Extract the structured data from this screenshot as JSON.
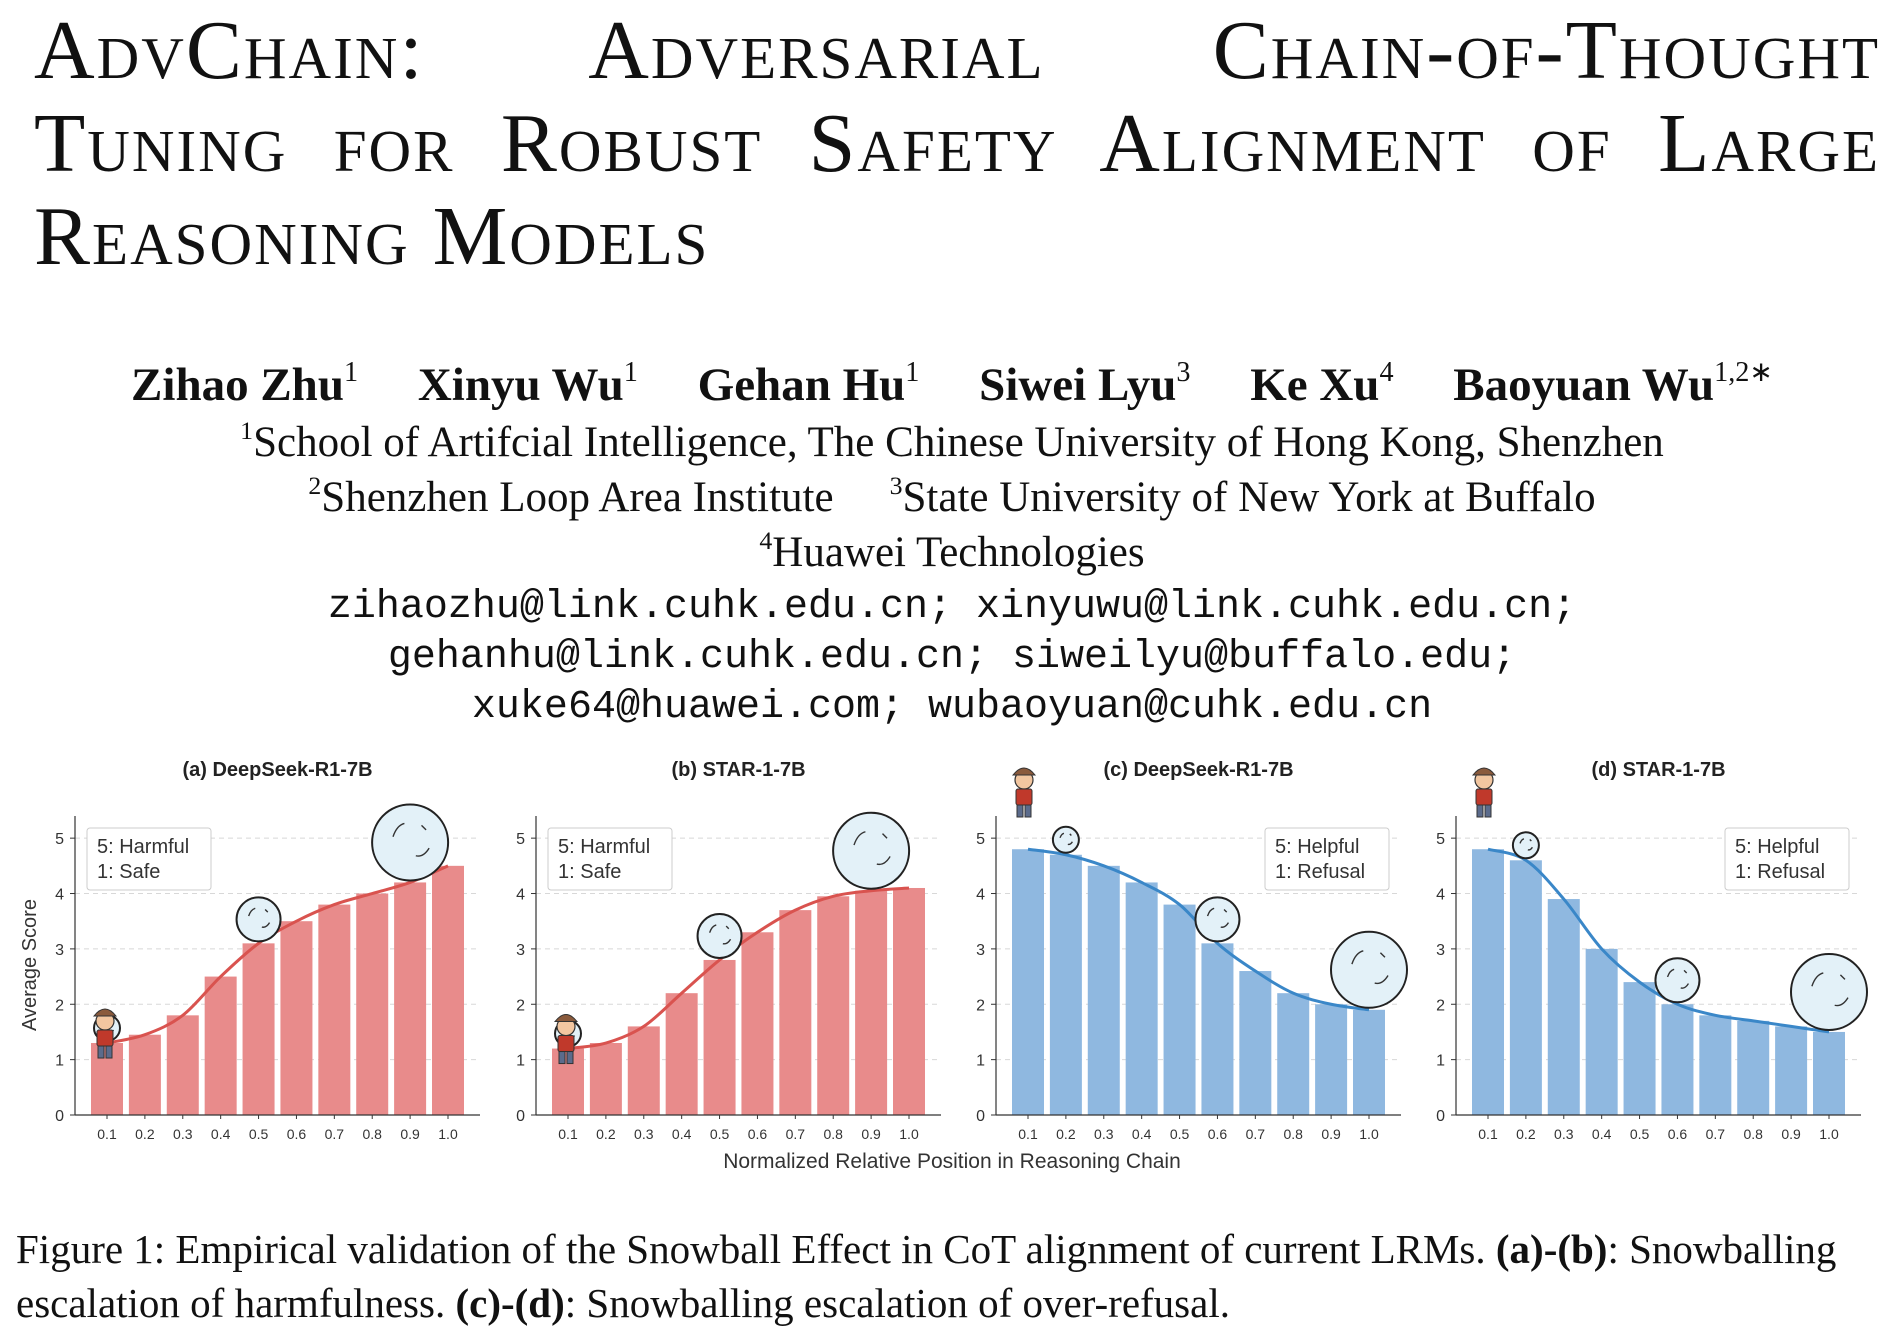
{
  "title_lines": [
    "AdvChain:    Adversarial  Chain-of-Thought",
    "Tuning for Robust Safety Alignment of Large",
    "Reasoning Models"
  ],
  "authors": [
    {
      "name": "Zihao Zhu",
      "sup": "1"
    },
    {
      "name": "Xinyu Wu",
      "sup": "1"
    },
    {
      "name": "Gehan Hu",
      "sup": "1"
    },
    {
      "name": "Siwei Lyu",
      "sup": "3"
    },
    {
      "name": "Ke Xu",
      "sup": "4"
    },
    {
      "name": "Baoyuan Wu",
      "sup": "1,2∗"
    }
  ],
  "affiliations": {
    "a1": {
      "sup": "1",
      "text": "School of Artifcial Intelligence, The Chinese University of Hong Kong, Shenzhen"
    },
    "a2": {
      "sup": "2",
      "text": "Shenzhen Loop Area Institute"
    },
    "a3": {
      "sup": "3",
      "text": "State University of New York at Buffalo"
    },
    "a4": {
      "sup": "4",
      "text": "Huawei Technologies"
    }
  },
  "emails": [
    "zihaozhu@link.cuhk.edu.cn; xinyuwu@link.cuhk.edu.cn;",
    "gehanhu@link.cuhk.edu.cn; siweilyu@buffalo.edu;",
    "xuke64@huawei.com; wubaoyuan@cuhk.edu.cn"
  ],
  "figure": {
    "shared_xlabel": "Normalized Relative Position in Reasoning Chain",
    "shared_ylabel": "Average Score",
    "colors": {
      "red_bar": "#e88b8b",
      "red_line": "#d9534f",
      "blue_bar": "#8fb8e0",
      "blue_line": "#3a87c8"
    }
  },
  "chart_data": [
    {
      "type": "bar",
      "panel": "(a)",
      "title": "DeepSeek-R1-7B",
      "categories": [
        "0.1",
        "0.2",
        "0.3",
        "0.4",
        "0.5",
        "0.6",
        "0.7",
        "0.8",
        "0.9",
        "1.0"
      ],
      "values": [
        1.3,
        1.45,
        1.8,
        2.5,
        3.1,
        3.5,
        3.8,
        4.0,
        4.2,
        4.5
      ],
      "ylim": [
        0,
        5.4
      ],
      "yticks": [
        "0",
        "1",
        "2",
        "3",
        "4",
        "5"
      ],
      "legend": [
        "5: Harmful",
        "1: Safe"
      ],
      "legend_position": "top-left",
      "color": "red",
      "grid": true
    },
    {
      "type": "bar",
      "panel": "(b)",
      "title": "STAR-1-7B",
      "categories": [
        "0.1",
        "0.2",
        "0.3",
        "0.4",
        "0.5",
        "0.6",
        "0.7",
        "0.8",
        "0.9",
        "1.0"
      ],
      "values": [
        1.2,
        1.3,
        1.6,
        2.2,
        2.8,
        3.3,
        3.7,
        3.95,
        4.05,
        4.1
      ],
      "ylim": [
        0,
        5.4
      ],
      "yticks": [
        "0",
        "1",
        "2",
        "3",
        "4",
        "5"
      ],
      "legend": [
        "5: Harmful",
        "1: Safe"
      ],
      "legend_position": "top-left",
      "color": "red",
      "grid": true
    },
    {
      "type": "bar",
      "panel": "(c)",
      "title": "DeepSeek-R1-7B",
      "categories": [
        "0.1",
        "0.2",
        "0.3",
        "0.4",
        "0.5",
        "0.6",
        "0.7",
        "0.8",
        "0.9",
        "1.0"
      ],
      "values": [
        4.8,
        4.7,
        4.5,
        4.2,
        3.8,
        3.1,
        2.6,
        2.2,
        2.0,
        1.9
      ],
      "ylim": [
        0,
        5.4
      ],
      "yticks": [
        "0",
        "1",
        "2",
        "3",
        "4",
        "5"
      ],
      "legend": [
        "5: Helpful",
        "1: Refusal"
      ],
      "legend_position": "top-right",
      "color": "blue",
      "grid": true
    },
    {
      "type": "bar",
      "panel": "(d)",
      "title": "STAR-1-7B",
      "categories": [
        "0.1",
        "0.2",
        "0.3",
        "0.4",
        "0.5",
        "0.6",
        "0.7",
        "0.8",
        "0.9",
        "1.0"
      ],
      "values": [
        4.8,
        4.6,
        3.9,
        3.0,
        2.4,
        2.0,
        1.8,
        1.7,
        1.6,
        1.5
      ],
      "ylim": [
        0,
        5.4
      ],
      "yticks": [
        "0",
        "1",
        "2",
        "3",
        "4",
        "5"
      ],
      "legend": [
        "5: Helpful",
        "1: Refusal"
      ],
      "legend_position": "top-right",
      "color": "blue",
      "grid": true
    }
  ],
  "caption": {
    "label": "Figure 1: Empirical validation of the Snowball Effect in CoT alignment of current LRMs.",
    "ab": "(a)-(b)",
    "ab_text": ": Snowballing escalation of harmfulness.",
    "cd": "(c)-(d)",
    "cd_text": ": Snowballing escalation of over-refusal."
  }
}
